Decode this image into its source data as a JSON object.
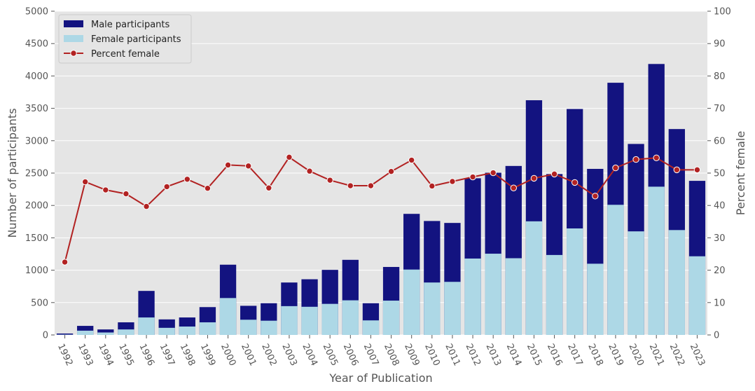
{
  "chart_data": {
    "type": "bar",
    "title": "",
    "xlabel": "Year of Publication",
    "ylabel": "Number of participants",
    "y2label": "Percent female",
    "ylim": [
      0,
      5000
    ],
    "y2lim": [
      0,
      100
    ],
    "yticks": [
      0,
      500,
      1000,
      1500,
      2000,
      2500,
      3000,
      3500,
      4000,
      4500,
      5000
    ],
    "y2ticks": [
      0,
      10,
      20,
      30,
      40,
      50,
      60,
      70,
      80,
      90,
      100
    ],
    "grid": true,
    "legend_position": "top-left",
    "categories": [
      "1992",
      "1993",
      "1994",
      "1995",
      "1996",
      "1997",
      "1998",
      "1999",
      "2000",
      "2001",
      "2002",
      "2003",
      "2004",
      "2005",
      "2006",
      "2007",
      "2008",
      "2009",
      "2010",
      "2011",
      "2012",
      "2013",
      "2014",
      "2015",
      "2016",
      "2017",
      "2018",
      "2019",
      "2020",
      "2021",
      "2022",
      "2023"
    ],
    "series": [
      {
        "name": "Male participants",
        "kind": "bar-total",
        "color": "#131380",
        "values": [
          22,
          140,
          85,
          195,
          680,
          240,
          270,
          430,
          1085,
          450,
          490,
          810,
          860,
          1005,
          1160,
          490,
          1050,
          1870,
          1760,
          1730,
          2420,
          2505,
          2610,
          3625,
          2485,
          3490,
          2565,
          3895,
          2950,
          4185,
          3180,
          2380
        ]
      },
      {
        "name": "Female participants",
        "kind": "bar",
        "color": "#add8e6",
        "values": [
          5,
          66,
          38,
          85,
          270,
          110,
          130,
          195,
          570,
          235,
          220,
          445,
          435,
          480,
          535,
          225,
          530,
          1010,
          810,
          820,
          1180,
          1255,
          1185,
          1755,
          1235,
          1645,
          1100,
          2010,
          1600,
          2290,
          1620,
          1215
        ]
      },
      {
        "name": "Percent female",
        "kind": "line",
        "color": "#b22222",
        "values": [
          22.5,
          47.3,
          44.8,
          43.6,
          39.7,
          45.8,
          48.1,
          45.3,
          52.5,
          52.2,
          45.4,
          54.9,
          50.6,
          47.8,
          46.1,
          46.1,
          50.5,
          54.0,
          46.0,
          47.4,
          48.8,
          50.1,
          45.4,
          48.4,
          49.7,
          47.1,
          42.9,
          51.6,
          54.2,
          54.7,
          51.0,
          51.0
        ]
      }
    ]
  }
}
